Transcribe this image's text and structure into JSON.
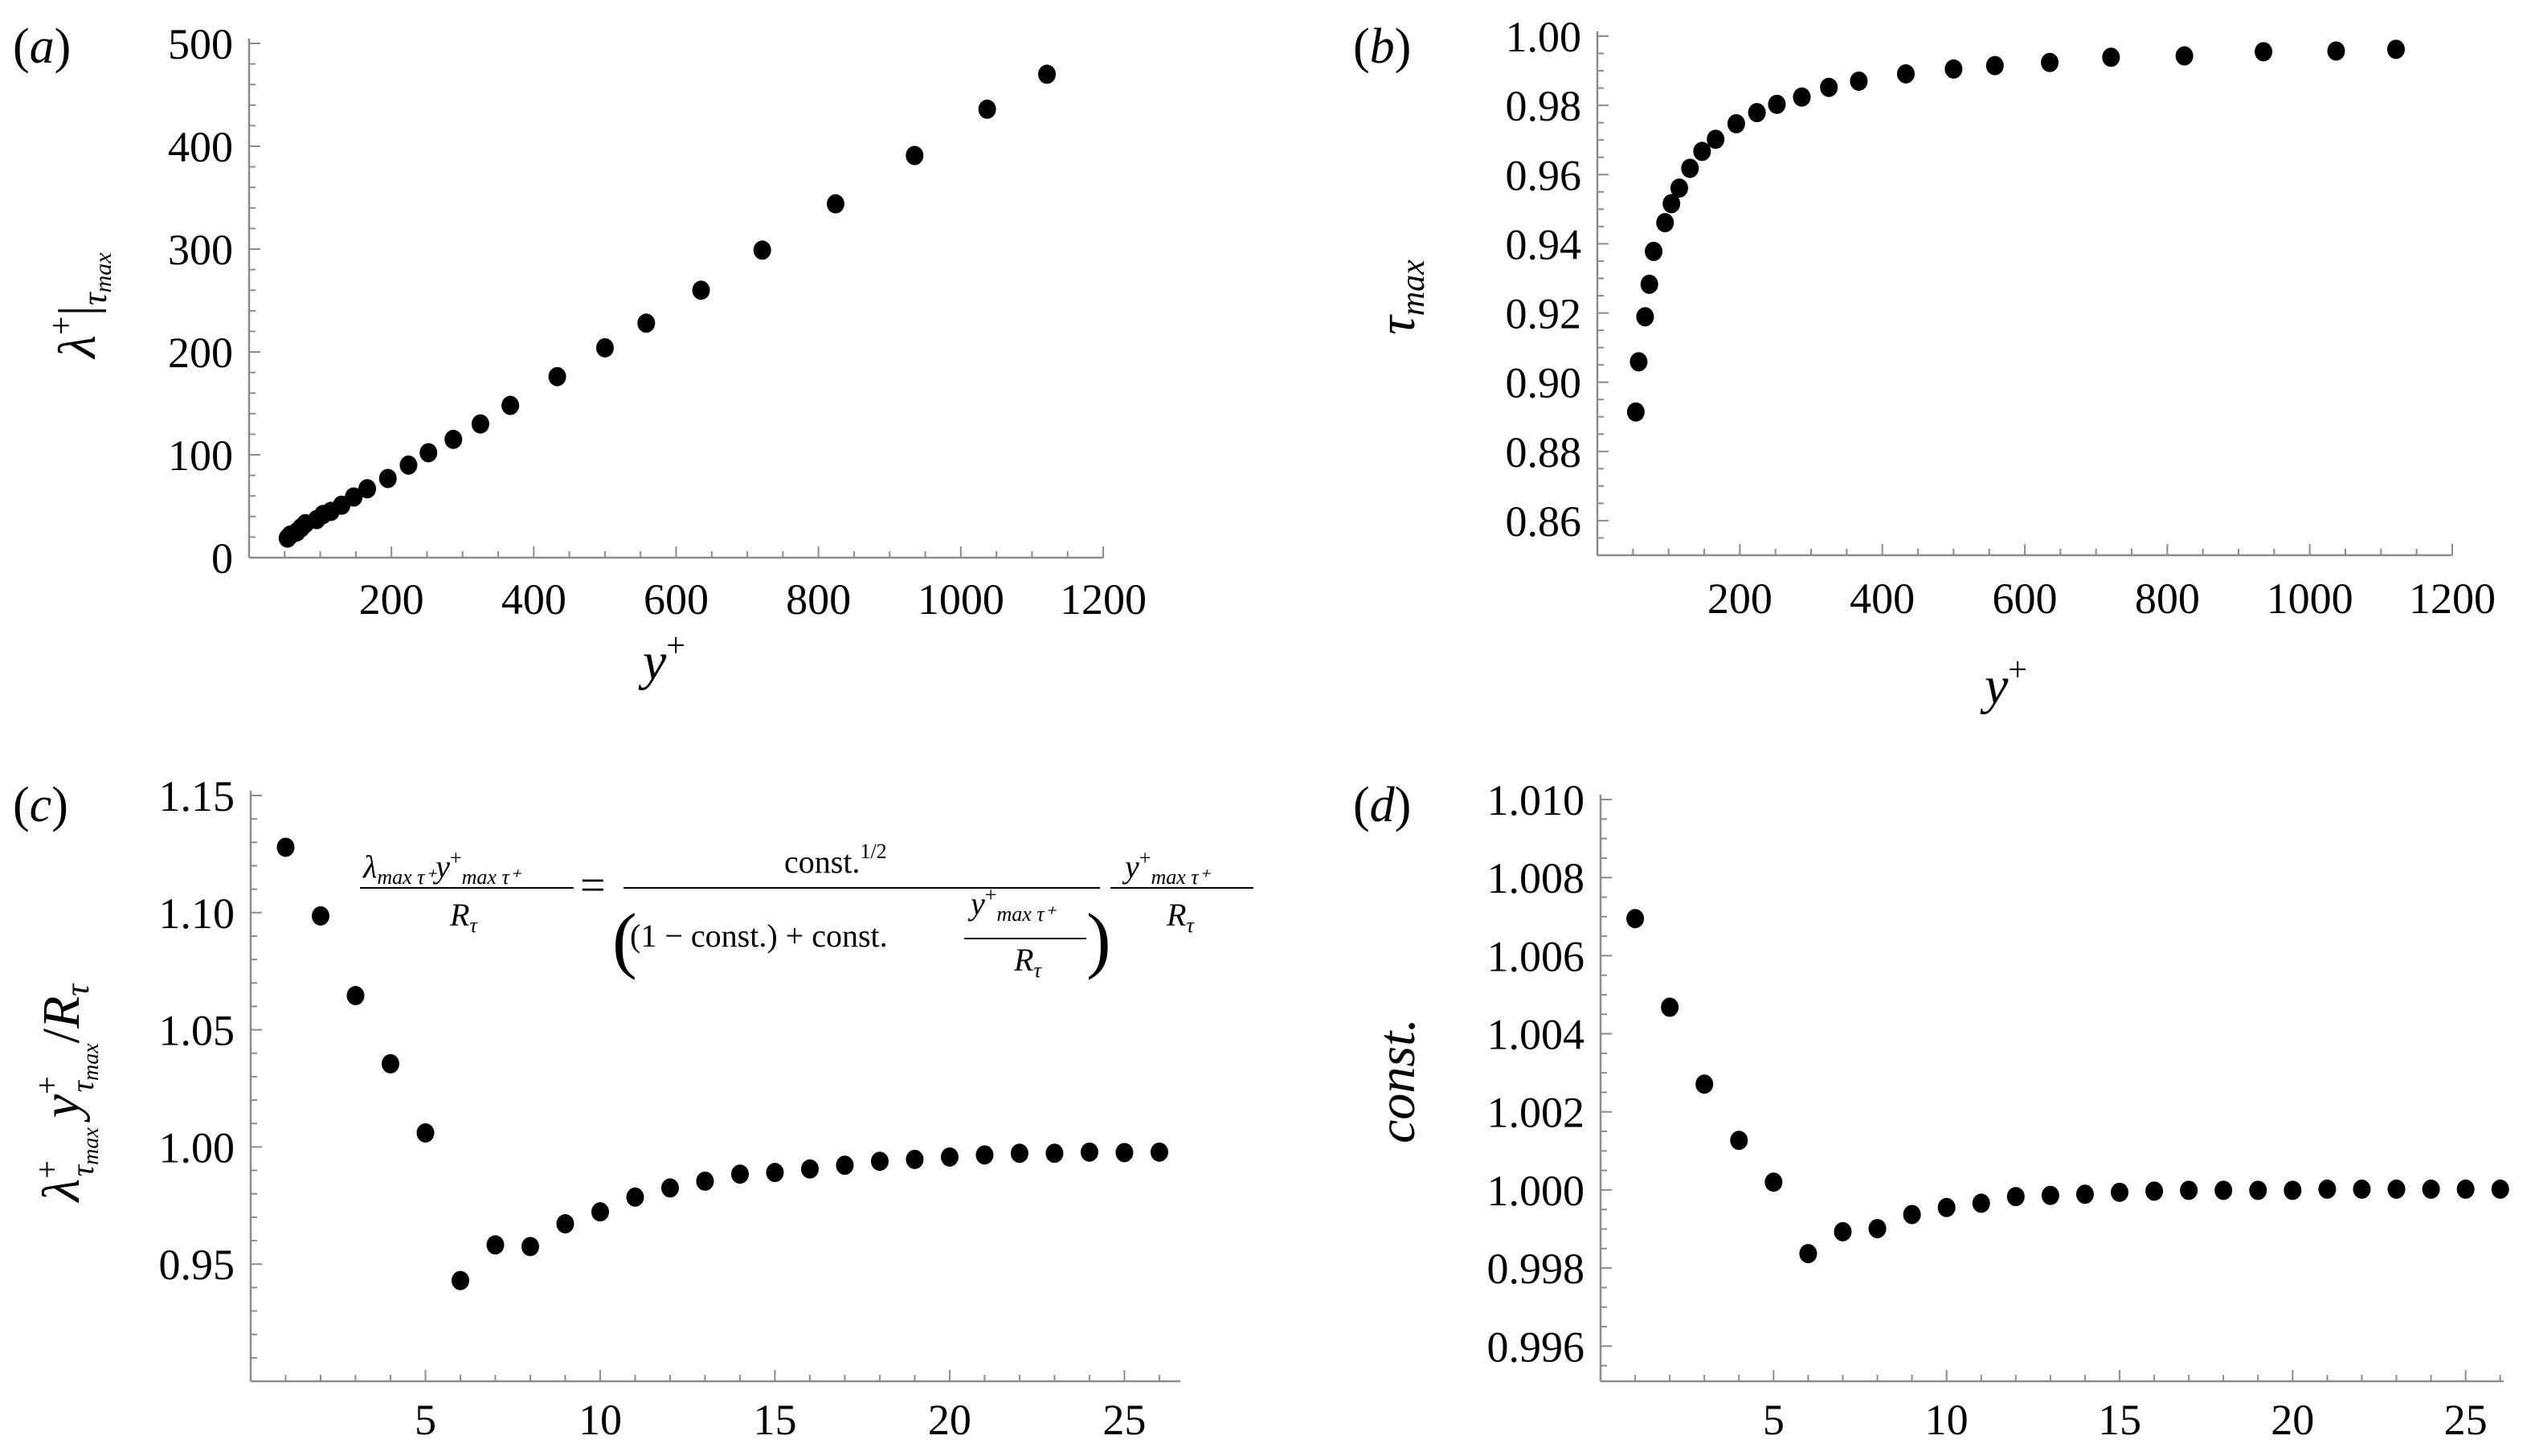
{
  "chart_data": [
    {
      "id": "a",
      "type": "scatter",
      "panel_label": "(a)",
      "xlabel": {
        "main": "y",
        "sup": "+"
      },
      "ylabel": {
        "main": "λ",
        "sup": "+",
        "bar": "|",
        "sub": "τ",
        "subsub": "max"
      },
      "xlim": [
        0,
        1200
      ],
      "ylim": [
        0,
        500
      ],
      "x_ticks": [
        {
          "v": 200,
          "label": "200"
        },
        {
          "v": 400,
          "label": "400"
        },
        {
          "v": 600,
          "label": "600"
        },
        {
          "v": 800,
          "label": "800"
        },
        {
          "v": 1000,
          "label": "1000"
        },
        {
          "v": 1200,
          "label": "1200"
        }
      ],
      "x_minor_step": 50,
      "y_ticks": [
        {
          "v": 0,
          "label": "0"
        },
        {
          "v": 100,
          "label": "100"
        },
        {
          "v": 200,
          "label": "200"
        },
        {
          "v": 300,
          "label": "300"
        },
        {
          "v": 400,
          "label": "400"
        },
        {
          "v": 500,
          "label": "500"
        }
      ],
      "y_minor_step": 20,
      "x": [
        54,
        58,
        67,
        73,
        79,
        95,
        104,
        115,
        130,
        147,
        166,
        195,
        224,
        252,
        287,
        325,
        367,
        433,
        500,
        558,
        635,
        721,
        824,
        935,
        1037,
        1121
      ],
      "y": [
        19,
        22,
        25,
        29,
        33,
        37,
        42,
        45,
        51,
        59,
        67,
        77,
        90,
        102,
        115,
        130,
        148,
        176,
        204,
        228,
        260,
        299,
        344,
        391,
        436,
        470
      ]
    },
    {
      "id": "b",
      "type": "scatter",
      "panel_label": "(b)",
      "xlabel": {
        "main": "y",
        "sup": "+"
      },
      "ylabel": {
        "main": "τ",
        "sub": "max"
      },
      "xlim": [
        0,
        1200
      ],
      "ylim": [
        0.85,
        1.0
      ],
      "x_ticks": [
        {
          "v": 200,
          "label": "200"
        },
        {
          "v": 400,
          "label": "400"
        },
        {
          "v": 600,
          "label": "600"
        },
        {
          "v": 800,
          "label": "800"
        },
        {
          "v": 1000,
          "label": "1000"
        },
        {
          "v": 1200,
          "label": "1200"
        }
      ],
      "x_minor_step": 50,
      "y_ticks": [
        {
          "v": 0.86,
          "label": "0.86"
        },
        {
          "v": 0.88,
          "label": "0.88"
        },
        {
          "v": 0.9,
          "label": "0.90"
        },
        {
          "v": 0.92,
          "label": "0.92"
        },
        {
          "v": 0.94,
          "label": "0.94"
        },
        {
          "v": 0.96,
          "label": "0.96"
        },
        {
          "v": 0.98,
          "label": "0.98"
        },
        {
          "v": 1.0,
          "label": "1.00"
        }
      ],
      "y_minor_step": 0.005,
      "x": [
        54,
        58,
        67,
        73,
        79,
        95,
        104,
        115,
        130,
        147,
        166,
        195,
        224,
        252,
        287,
        325,
        367,
        433,
        500,
        558,
        635,
        721,
        824,
        935,
        1037,
        1121
      ],
      "y": [
        0.8914,
        0.9059,
        0.9189,
        0.9283,
        0.9378,
        0.9461,
        0.9516,
        0.9561,
        0.9618,
        0.9667,
        0.9702,
        0.9747,
        0.9779,
        0.9803,
        0.9824,
        0.9852,
        0.987,
        0.9891,
        0.9905,
        0.9915,
        0.9924,
        0.9939,
        0.9943,
        0.9955,
        0.9957,
        0.9962
      ]
    },
    {
      "id": "c",
      "type": "scatter",
      "panel_label": "(c)",
      "ylabel": {
        "l": "λ",
        "l_sup": "+",
        "l_sub": "τ",
        "l_subsub": "max",
        "y": "y",
        "y_sup": "+",
        "y_sub": "τ",
        "y_subsub": "max",
        "slash": "/",
        "r": "R",
        "r_sub": "τ"
      },
      "xlim": [
        0,
        26.6
      ],
      "ylim": [
        0.9,
        1.15
      ],
      "x_ticks": [
        {
          "v": 5,
          "label": "5"
        },
        {
          "v": 10,
          "label": "10"
        },
        {
          "v": 15,
          "label": "15"
        },
        {
          "v": 20,
          "label": "20"
        },
        {
          "v": 25,
          "label": "25"
        }
      ],
      "x_minor_step": 1,
      "y_ticks": [
        {
          "v": 0.95,
          "label": "0.95"
        },
        {
          "v": 1.0,
          "label": "1.00"
        },
        {
          "v": 1.05,
          "label": "1.05"
        },
        {
          "v": 1.1,
          "label": "1.10"
        },
        {
          "v": 1.15,
          "label": "1.15"
        }
      ],
      "y_minor_step": 0.01,
      "x": [
        1,
        2,
        3,
        4,
        5,
        6,
        7,
        8,
        9,
        10,
        11,
        12,
        13,
        14,
        15,
        16,
        17,
        18,
        19,
        20,
        21,
        22,
        23,
        24,
        25,
        26
      ],
      "y": [
        1.1279,
        1.0986,
        1.0646,
        1.0355,
        1.006,
        0.943,
        0.9582,
        0.9575,
        0.9672,
        0.9723,
        0.9786,
        0.9825,
        0.9854,
        0.9884,
        0.9891,
        0.9906,
        0.9922,
        0.9939,
        0.9947,
        0.9957,
        0.9966,
        0.9973,
        0.9973,
        0.9978,
        0.9976,
        0.9978
      ],
      "annotation": {
        "lhs_num": {
          "l": "λ",
          "l_sub": "max τ⁺",
          "y": "y",
          "y_sup": "+",
          "y_sub": "max τ⁺"
        },
        "lhs_den": {
          "r": "R",
          "r_sub": "τ"
        },
        "equals": "=",
        "rhs_num": {
          "c": "const.",
          "c_sup": "1/2"
        },
        "rhs_den": {
          "open": "(",
          "body": "(1 − const.) + const.",
          "y": "y",
          "y_sup": "+",
          "y_sub": "max τ⁺",
          "r": "R",
          "r_sub": "τ",
          "close": ")"
        },
        "factor_num": {
          "y": "y",
          "y_sup": "+",
          "y_sub": "max τ⁺"
        },
        "factor_den": {
          "r": "R",
          "r_sub": "τ"
        }
      }
    },
    {
      "id": "d",
      "type": "scatter",
      "panel_label": "(d)",
      "ylabel": {
        "main": "const."
      },
      "xlim": [
        0,
        26.1
      ],
      "ylim": [
        0.9951,
        1.01
      ],
      "x_ticks": [
        {
          "v": 5,
          "label": "5"
        },
        {
          "v": 10,
          "label": "10"
        },
        {
          "v": 15,
          "label": "15"
        },
        {
          "v": 20,
          "label": "20"
        },
        {
          "v": 25,
          "label": "25"
        }
      ],
      "x_minor_step": 1,
      "y_ticks": [
        {
          "v": 0.996,
          "label": "0.996"
        },
        {
          "v": 0.998,
          "label": "0.998"
        },
        {
          "v": 1.0,
          "label": "1.000"
        },
        {
          "v": 1.002,
          "label": "1.002"
        },
        {
          "v": 1.004,
          "label": "1.004"
        },
        {
          "v": 1.006,
          "label": "1.006"
        },
        {
          "v": 1.008,
          "label": "1.008"
        },
        {
          "v": 1.01,
          "label": "1.010"
        }
      ],
      "y_minor_step": 0.0005,
      "x": [
        1,
        2,
        3,
        4,
        5,
        6,
        7,
        8,
        9,
        10,
        11,
        12,
        13,
        14,
        15,
        16,
        17,
        18,
        19,
        20,
        21,
        22,
        23,
        24,
        25,
        26
      ],
      "y": [
        1.00695,
        1.00468,
        1.00271,
        1.00127,
        1.0002,
        0.99837,
        0.99893,
        0.99901,
        0.99937,
        0.99955,
        0.99966,
        0.99983,
        0.99986,
        0.99989,
        0.99994,
        0.99997,
        0.99999,
        0.99999,
        0.99999,
        0.99999,
        1.00002,
        1.00002,
        1.00002,
        1.00002,
        1.00002,
        1.00002
      ]
    }
  ]
}
